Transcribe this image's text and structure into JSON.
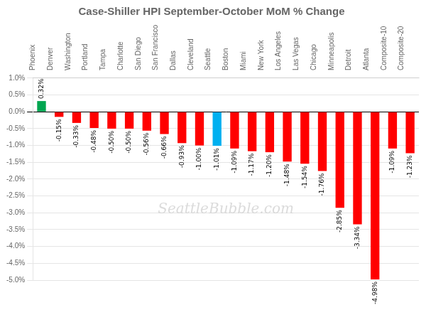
{
  "chart_data": {
    "type": "bar",
    "title": "Case-Shiller HPI September-October MoM % Change",
    "categories": [
      "Phoenix",
      "Denver",
      "Washington",
      "Portland",
      "Tampa",
      "Charlotte",
      "San Diego",
      "San Francisco",
      "Dallas",
      "Cleveland",
      "Seattle",
      "Boston",
      "Miami",
      "New York",
      "Los Angeles",
      "Las Vegas",
      "Chicago",
      "Minneapolis",
      "Detroit",
      "Atlanta",
      "Composite-10",
      "Composite-20"
    ],
    "values": [
      0.32,
      -0.15,
      -0.33,
      -0.48,
      -0.5,
      -0.5,
      -0.56,
      -0.66,
      -0.93,
      -1.0,
      -1.01,
      -1.09,
      -1.17,
      -1.2,
      -1.48,
      -1.54,
      -1.76,
      -2.85,
      -3.34,
      -4.98,
      -1.09,
      -1.23
    ],
    "value_labels": [
      "0.32%",
      "-0.15%",
      "-0.33%",
      "-0.48%",
      "-0.50%",
      "-0.50%",
      "-0.56%",
      "-0.66%",
      "-0.93%",
      "-1.00%",
      "-1.01%",
      "-1.09%",
      "-1.17%",
      "-1.20%",
      "-1.48%",
      "-1.54%",
      "-1.76%",
      "-2.85%",
      "-3.34%",
      "-4.98%",
      "-1.09%",
      "-1.23%"
    ],
    "colors": [
      "#00a550",
      "#ff0000",
      "#ff0000",
      "#ff0000",
      "#ff0000",
      "#ff0000",
      "#ff0000",
      "#ff0000",
      "#ff0000",
      "#ff0000",
      "#00b0f0",
      "#ff0000",
      "#ff0000",
      "#ff0000",
      "#ff0000",
      "#ff0000",
      "#ff0000",
      "#ff0000",
      "#ff0000",
      "#ff0000",
      "#ff0000",
      "#ff0000"
    ],
    "ylim": [
      -5.0,
      1.0
    ],
    "yticks": [
      {
        "value": 1.0,
        "label": "1.0%"
      },
      {
        "value": 0.5,
        "label": "0.5%"
      },
      {
        "value": 0.0,
        "label": "0.0%"
      },
      {
        "value": -0.5,
        "label": "-0.5%"
      },
      {
        "value": -1.0,
        "label": "-1.0%"
      },
      {
        "value": -1.5,
        "label": "-1.5%"
      },
      {
        "value": -2.0,
        "label": "-2.0%"
      },
      {
        "value": -2.5,
        "label": "-2.5%"
      },
      {
        "value": -3.0,
        "label": "-3.0%"
      },
      {
        "value": -3.5,
        "label": "-3.5%"
      },
      {
        "value": -4.0,
        "label": "-4.0%"
      },
      {
        "value": -4.5,
        "label": "-4.5%"
      },
      {
        "value": -5.0,
        "label": "-5.0%"
      }
    ],
    "grid": true,
    "data_labels": true,
    "annotations": [
      "SeattleBubble.com"
    ]
  }
}
